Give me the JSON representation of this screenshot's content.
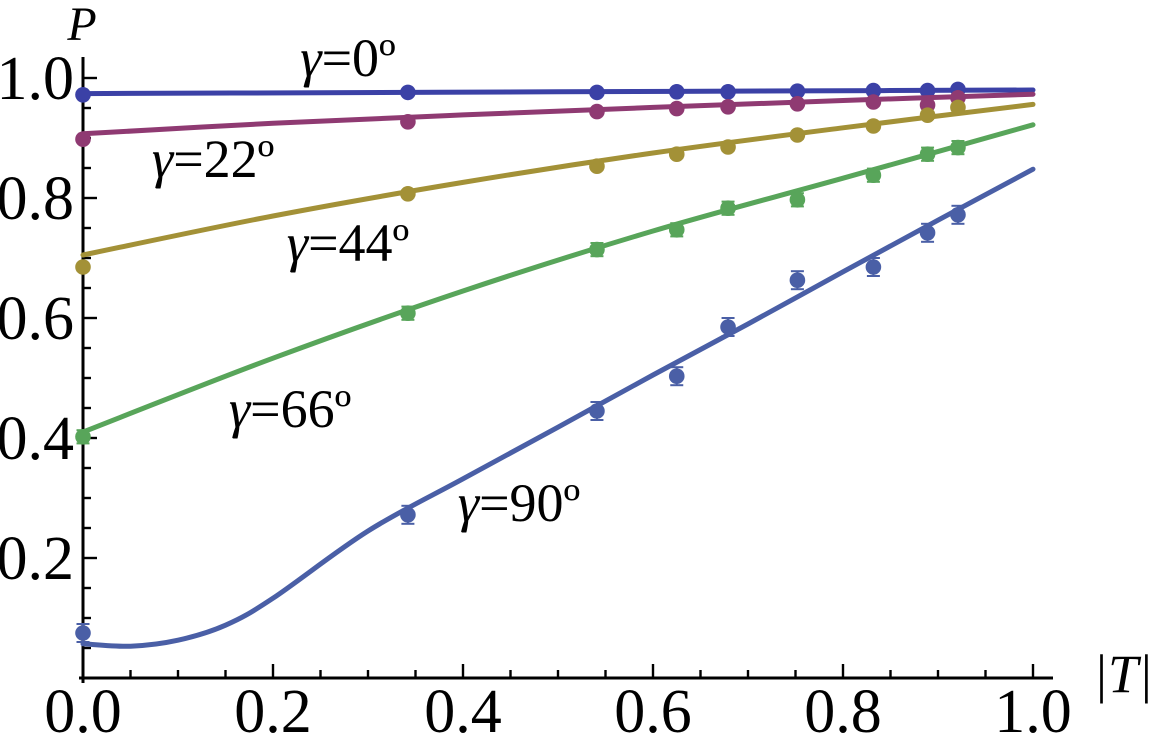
{
  "figure": {
    "background": "#ffffff",
    "axis_color": "#000000"
  },
  "chart_data": {
    "type": "line",
    "title": "",
    "xlabel": "|T|",
    "ylabel": "P",
    "xlim": [
      0,
      1.0
    ],
    "ylim": [
      0,
      1.0
    ],
    "grid": "off",
    "legend": "inline-annotations",
    "xticks": {
      "major": [
        {
          "value": 0.0,
          "label": "0.0"
        },
        {
          "value": 0.2,
          "label": "0.2"
        },
        {
          "value": 0.4,
          "label": "0.4"
        },
        {
          "value": 0.6,
          "label": "0.6"
        },
        {
          "value": 0.8,
          "label": "0.8"
        },
        {
          "value": 1.0,
          "label": "1.0"
        }
      ],
      "minor_step": 0.05
    },
    "yticks": {
      "major": [
        {
          "value": 0.2,
          "label": "0.2"
        },
        {
          "value": 0.4,
          "label": "0.4"
        },
        {
          "value": 0.6,
          "label": "0.6"
        },
        {
          "value": 0.8,
          "label": "0.8"
        },
        {
          "value": 1.0,
          "label": "1.0"
        }
      ],
      "minor_step": 0.05
    },
    "x_points": [
      0.0,
      0.342,
      0.541,
      0.625,
      0.679,
      0.752,
      0.832,
      0.889,
      0.921
    ],
    "series": [
      {
        "name": "gamma-0",
        "label": "γ=0º",
        "color": "#3b41a6",
        "point_error": 0.004,
        "points": [
          0.972,
          0.976,
          0.976,
          0.977,
          0.977,
          0.978,
          0.979,
          0.979,
          0.981
        ],
        "curve": [
          [
            0,
            0.974
          ],
          [
            0.25,
            0.9755
          ],
          [
            0.5,
            0.977
          ],
          [
            0.75,
            0.9785
          ],
          [
            1,
            0.98
          ]
        ],
        "annotation": {
          "x": 0.279,
          "y": 1.035
        }
      },
      {
        "name": "gamma-22",
        "label": "γ=22º",
        "color": "#8f3a72",
        "point_error": 0.005,
        "points": [
          0.898,
          0.927,
          0.944,
          0.949,
          0.952,
          0.957,
          0.96,
          0.955,
          0.967
        ],
        "curve": [
          [
            0,
            0.907
          ],
          [
            0.2,
            0.9245
          ],
          [
            0.4,
            0.9385
          ],
          [
            0.6,
            0.951
          ],
          [
            0.8,
            0.9625
          ],
          [
            1,
            0.973
          ]
        ],
        "annotation": {
          "x": 0.137,
          "y": 0.867
        }
      },
      {
        "name": "gamma-44",
        "label": "γ=44º",
        "color": "#a39137",
        "point_error": 0.006,
        "points": [
          0.685,
          0.807,
          0.853,
          0.873,
          0.885,
          0.905,
          0.92,
          0.938,
          0.951
        ],
        "curve": [
          [
            0,
            0.705
          ],
          [
            0.2,
            0.77
          ],
          [
            0.4,
            0.826
          ],
          [
            0.6,
            0.875
          ],
          [
            0.8,
            0.917
          ],
          [
            1,
            0.956
          ]
        ],
        "annotation": {
          "x": 0.279,
          "y": 0.727
        }
      },
      {
        "name": "gamma-66",
        "label": "γ=66º",
        "color": "#58a55a",
        "point_error": 0.011,
        "points": [
          0.402,
          0.608,
          0.714,
          0.747,
          0.783,
          0.797,
          0.838,
          0.873,
          0.884
        ],
        "curve": [
          [
            0,
            0.41
          ],
          [
            0.2,
            0.533
          ],
          [
            0.4,
            0.645
          ],
          [
            0.6,
            0.745
          ],
          [
            0.8,
            0.833
          ],
          [
            1,
            0.922
          ]
        ],
        "annotation": {
          "x": 0.218,
          "y": 0.45
        }
      },
      {
        "name": "gamma-90",
        "label": "γ=90º",
        "color": "#4a5fa6",
        "point_error": 0.015,
        "points": [
          0.075,
          0.272,
          0.445,
          0.503,
          0.585,
          0.663,
          0.685,
          0.742,
          0.772
        ],
        "curve": [
          [
            0,
            0.057
          ],
          [
            0.05,
            0.053
          ],
          [
            0.1,
            0.063
          ],
          [
            0.15,
            0.088
          ],
          [
            0.2,
            0.133
          ],
          [
            0.3,
            0.245
          ],
          [
            0.4,
            0.332
          ],
          [
            0.5,
            0.418
          ],
          [
            0.6,
            0.505
          ],
          [
            0.7,
            0.59
          ],
          [
            0.8,
            0.677
          ],
          [
            0.9,
            0.763
          ],
          [
            1,
            0.848
          ]
        ],
        "annotation": {
          "x": 0.459,
          "y": 0.293
        }
      }
    ]
  }
}
